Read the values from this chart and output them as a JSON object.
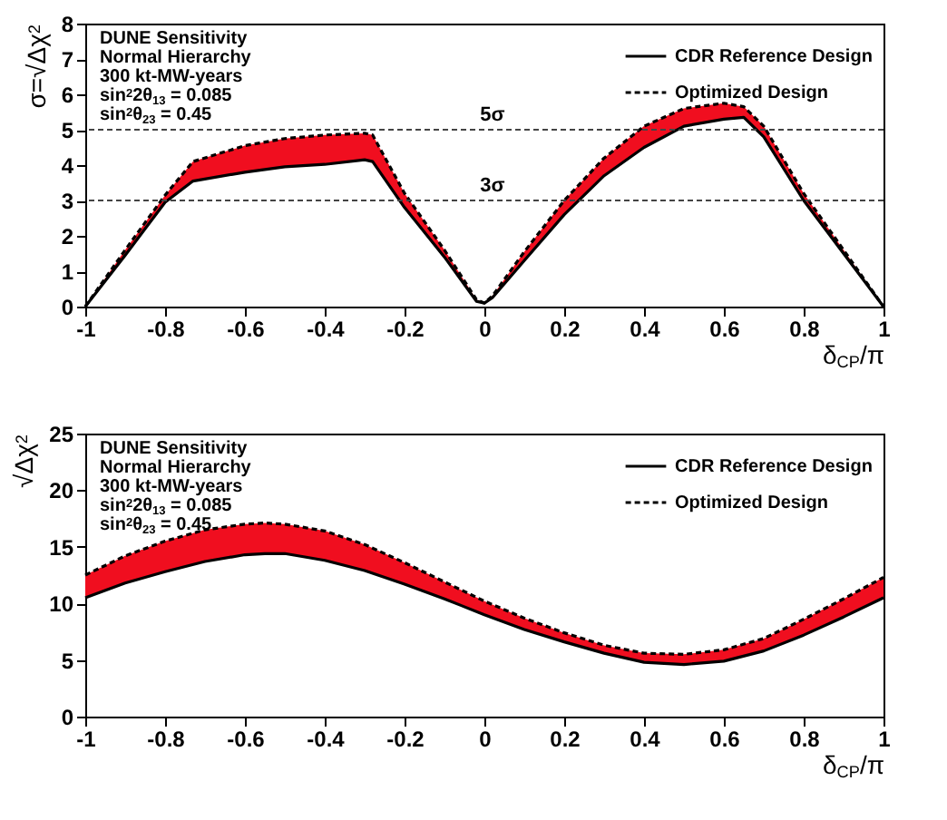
{
  "chart_data": [
    {
      "type": "line",
      "xlabel": "δ$_{CP}$/π",
      "ylabel": "σ=√Δχ$^{2}$",
      "annotations": [
        "DUNE Sensitivity",
        "Normal Hierarchy",
        "300 kt-MW-years",
        "sin$^{2}$2θ$_{13}$ = 0.085",
        "sin$^{2}$θ$_{23}$ = 0.45"
      ],
      "x": [
        -1,
        -0.9,
        -0.8,
        -0.73,
        -0.6,
        -0.5,
        -0.4,
        -0.3,
        -0.28,
        -0.2,
        -0.1,
        -0.02,
        0,
        0.02,
        0.1,
        0.2,
        0.3,
        0.4,
        0.5,
        0.6,
        0.65,
        0.7,
        0.8,
        0.9,
        1
      ],
      "series": [
        {
          "name": "CDR Reference Design",
          "color": "#000000",
          "line_style": "solid",
          "values": [
            0,
            1.45,
            2.95,
            3.55,
            3.8,
            3.95,
            4.02,
            4.15,
            4.1,
            2.8,
            1.4,
            0.15,
            0.1,
            0.25,
            1.3,
            2.6,
            3.7,
            4.5,
            5.1,
            5.3,
            5.35,
            4.8,
            3.0,
            1.5,
            0
          ]
        },
        {
          "name": "Optimized Design",
          "color": "#000000",
          "line_style": "dashed",
          "values": [
            0,
            1.6,
            3.15,
            4.1,
            4.55,
            4.75,
            4.85,
            4.9,
            4.85,
            3.2,
            1.6,
            0.2,
            0.1,
            0.3,
            1.55,
            3.0,
            4.2,
            5.1,
            5.6,
            5.75,
            5.65,
            5.1,
            3.2,
            1.6,
            0
          ],
          "lower": [
            0,
            1.45,
            2.95,
            3.55,
            3.8,
            3.95,
            4.02,
            4.15,
            4.1,
            2.8,
            1.4,
            0.15,
            0.1,
            0.25,
            1.3,
            2.6,
            3.7,
            4.5,
            5.1,
            5.3,
            5.35,
            4.8,
            3.0,
            1.5,
            0
          ],
          "upper": [
            0,
            1.6,
            3.15,
            4.1,
            4.55,
            4.75,
            4.85,
            4.9,
            4.85,
            3.2,
            1.6,
            0.2,
            0.1,
            0.3,
            1.55,
            3.0,
            4.2,
            5.1,
            5.6,
            5.75,
            5.65,
            5.1,
            3.2,
            1.6,
            0
          ]
        }
      ],
      "ref_lines": [
        {
          "axis": "y",
          "value": 3,
          "label": "3σ",
          "line_style": "dashed"
        },
        {
          "axis": "y",
          "value": 5,
          "label": "5σ",
          "line_style": "dashed"
        }
      ],
      "xlim": [
        -1,
        1
      ],
      "xticks": [
        -1,
        -0.8,
        -0.6,
        -0.4,
        -0.2,
        0,
        0.2,
        0.4,
        0.6,
        0.8,
        1
      ],
      "ylim": [
        0,
        8
      ],
      "yticks": [
        0,
        1,
        2,
        3,
        4,
        5,
        6,
        7,
        8
      ],
      "legend": "top right"
    },
    {
      "type": "line",
      "xlabel": "δ$_{CP}$/π",
      "ylabel": "√Δχ$^{2}$",
      "annotations": [
        "DUNE Sensitivity",
        "Normal Hierarchy",
        "300 kt-MW-years",
        "sin$^{2}$2θ$_{13}$ = 0.085",
        "sin$^{2}$θ$_{23}$ = 0.45"
      ],
      "x": [
        -1,
        -0.9,
        -0.8,
        -0.7,
        -0.6,
        -0.55,
        -0.5,
        -0.4,
        -0.3,
        -0.2,
        -0.1,
        0,
        0.1,
        0.2,
        0.3,
        0.4,
        0.5,
        0.6,
        0.7,
        0.8,
        0.9,
        1
      ],
      "series": [
        {
          "name": "CDR Reference Design",
          "color": "#000000",
          "line_style": "solid",
          "values": [
            10.5,
            11.8,
            12.8,
            13.7,
            14.3,
            14.4,
            14.4,
            13.8,
            12.9,
            11.7,
            10.4,
            9.0,
            7.7,
            6.6,
            5.6,
            4.8,
            4.6,
            4.9,
            5.8,
            7.2,
            8.8,
            10.5
          ]
        },
        {
          "name": "Optimized Design",
          "color": "#000000",
          "line_style": "dashed",
          "values": [
            12.5,
            14.2,
            15.5,
            16.5,
            17.0,
            17.1,
            17.0,
            16.4,
            15.2,
            13.6,
            11.9,
            10.2,
            8.7,
            7.4,
            6.3,
            5.6,
            5.5,
            5.9,
            6.9,
            8.6,
            10.4,
            12.3
          ],
          "lower": [
            10.5,
            11.8,
            12.8,
            13.7,
            14.3,
            14.4,
            14.4,
            13.8,
            12.9,
            11.7,
            10.4,
            9.0,
            7.7,
            6.6,
            5.6,
            4.8,
            4.6,
            4.9,
            5.8,
            7.2,
            8.8,
            10.5
          ],
          "upper": [
            12.5,
            14.2,
            15.5,
            16.5,
            17.0,
            17.1,
            17.0,
            16.4,
            15.2,
            13.6,
            11.9,
            10.2,
            8.7,
            7.4,
            6.3,
            5.6,
            5.5,
            5.9,
            6.9,
            8.6,
            10.4,
            12.3
          ]
        }
      ],
      "xlim": [
        -1,
        1
      ],
      "xticks": [
        -1,
        -0.8,
        -0.6,
        -0.4,
        -0.2,
        0,
        0.2,
        0.4,
        0.6,
        0.8,
        1
      ],
      "ylim": [
        0,
        25
      ],
      "yticks": [
        0,
        5,
        10,
        15,
        20,
        25
      ],
      "legend": "top right"
    }
  ]
}
